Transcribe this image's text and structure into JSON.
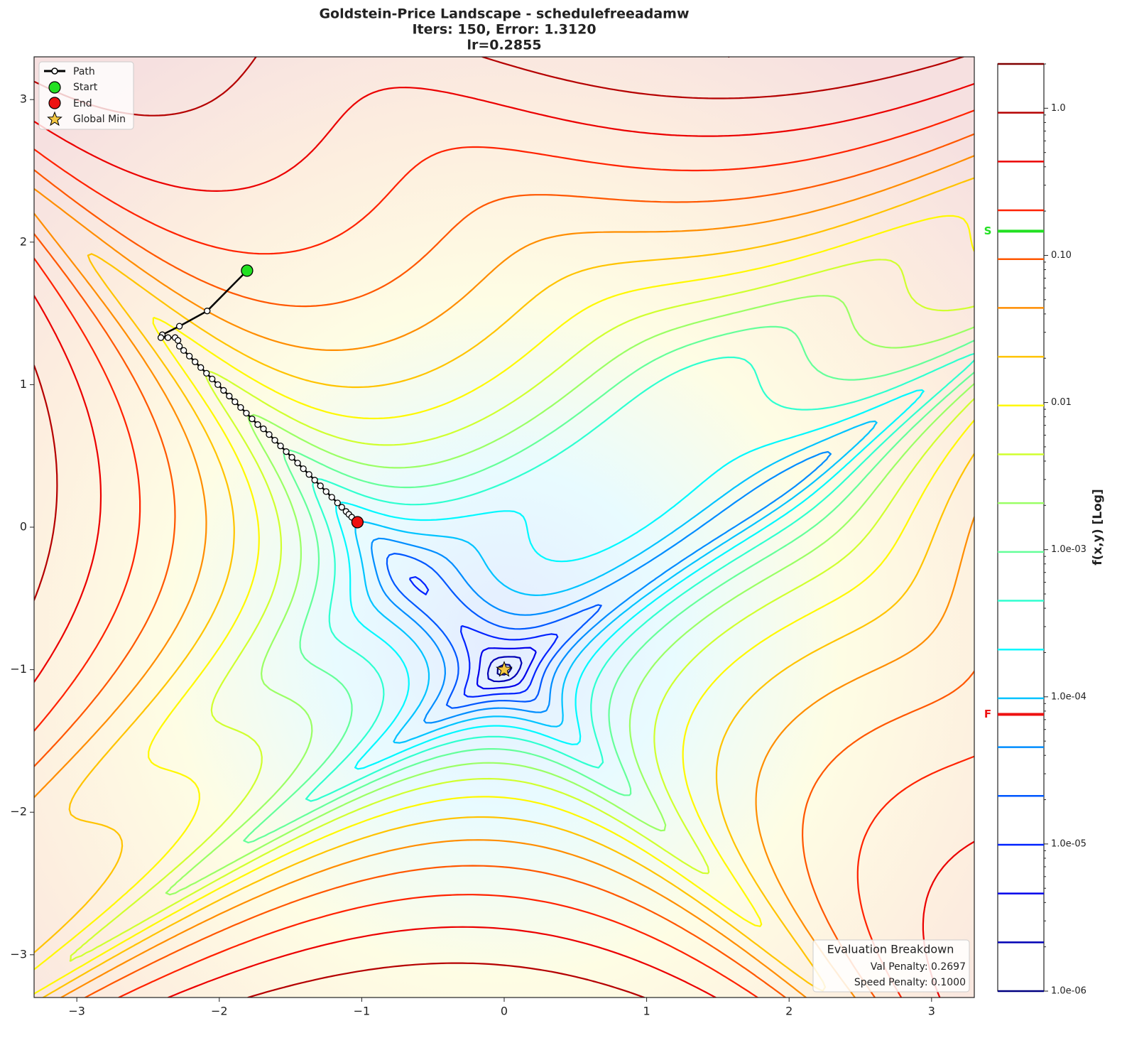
{
  "chart_data": {
    "type": "contour",
    "title": [
      "Goldstein-Price Landscape - schedulefreeadamw",
      "Iters: 150, Error: 1.3120",
      "lr=0.2855"
    ],
    "function": "Goldstein-Price",
    "xlim": [
      -3.3,
      3.3
    ],
    "ylim": [
      -3.3,
      3.3
    ],
    "xticks": [
      {
        "value": -3,
        "label": "−3"
      },
      {
        "value": -2,
        "label": "−2"
      },
      {
        "value": -1,
        "label": "−1"
      },
      0,
      1,
      2,
      3
    ],
    "yticks": [
      {
        "value": -3,
        "label": "−3"
      },
      {
        "value": -2,
        "label": "−2"
      },
      {
        "value": -1,
        "label": "−1"
      },
      0,
      1,
      2,
      3
    ],
    "colorbar": {
      "label": "f(x,y) [Log]",
      "log": true,
      "clim": [
        1e-06,
        2
      ],
      "levels": 20,
      "colormap": "jet",
      "ticks": [
        {
          "value": 1e-06,
          "label": "1.0e-06"
        },
        {
          "value": 1e-05,
          "label": "1.0e-05"
        },
        {
          "value": 0.0001,
          "label": "1.0e-04"
        },
        {
          "value": 0.001,
          "label": "1.0e-03"
        },
        {
          "value": 0.01,
          "label": "0.01"
        },
        {
          "value": 0.1,
          "label": "0.10"
        },
        {
          "value": 1,
          "label": "1.0"
        }
      ],
      "markers": [
        {
          "label": "S",
          "value": 0.146,
          "color": "#22e022"
        },
        {
          "label": "F",
          "value": 7.6e-05,
          "color": "#ee1111"
        }
      ]
    },
    "path": {
      "name": "Path",
      "color": "#000000",
      "x": [
        -1.805,
        -2.085,
        -2.28,
        -2.4,
        -2.41,
        -2.36,
        -2.31,
        -2.29,
        -2.28,
        -2.25,
        -2.21,
        -2.17,
        -2.13,
        -2.09,
        -2.05,
        -2.01,
        -1.97,
        -1.93,
        -1.89,
        -1.85,
        -1.81,
        -1.77,
        -1.73,
        -1.69,
        -1.65,
        -1.61,
        -1.57,
        -1.53,
        -1.49,
        -1.45,
        -1.41,
        -1.37,
        -1.33,
        -1.29,
        -1.25,
        -1.21,
        -1.17,
        -1.14,
        -1.11,
        -1.09,
        -1.07,
        -1.03
      ],
      "y": [
        1.8,
        1.517,
        1.41,
        1.35,
        1.33,
        1.33,
        1.33,
        1.31,
        1.27,
        1.24,
        1.2,
        1.16,
        1.12,
        1.08,
        1.04,
        1.0,
        0.96,
        0.92,
        0.88,
        0.84,
        0.8,
        0.76,
        0.72,
        0.69,
        0.65,
        0.61,
        0.57,
        0.53,
        0.49,
        0.45,
        0.41,
        0.37,
        0.33,
        0.29,
        0.25,
        0.21,
        0.17,
        0.14,
        0.11,
        0.09,
        0.07,
        0.035
      ]
    },
    "start": {
      "name": "Start",
      "color": "#22e022"
    },
    "end": {
      "name": "End",
      "color": "#ee1111"
    },
    "global_min": {
      "name": "Global Min",
      "x": 0,
      "y": -1,
      "color": "#f5c842"
    },
    "legend": "upper left",
    "evaluation": {
      "title": "Evaluation Breakdown",
      "lines": [
        "Val Penalty: 0.2697",
        "Speed Penalty: 0.1000"
      ]
    }
  }
}
